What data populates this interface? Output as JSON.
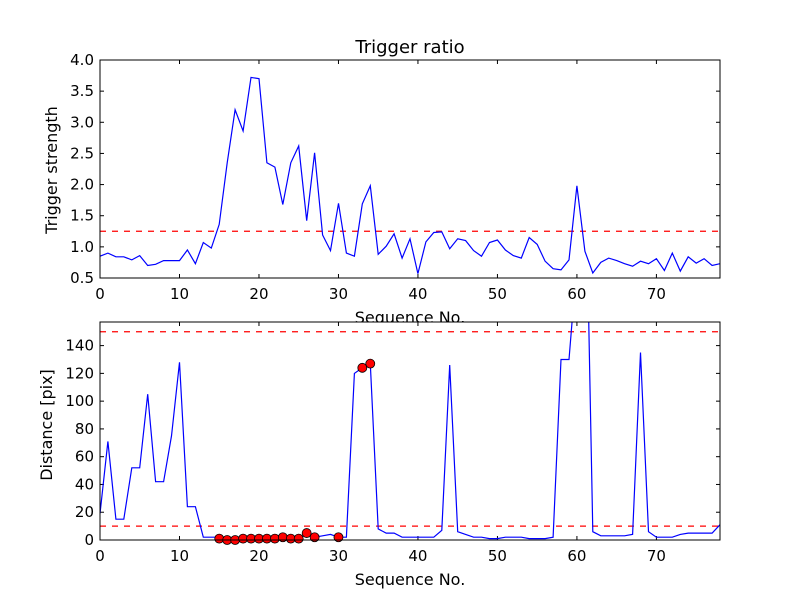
{
  "chart_data": [
    {
      "type": "line",
      "title": "Trigger ratio",
      "xlabel": "Sequence No.",
      "ylabel": "Trigger strength",
      "xlim": [
        0,
        78
      ],
      "ylim": [
        0.5,
        4.0
      ],
      "x_ticks": [
        "0",
        "10",
        "20",
        "30",
        "40",
        "50",
        "60",
        "70"
      ],
      "y_ticks": [
        "0.5",
        "1.0",
        "1.5",
        "2.0",
        "2.5",
        "3.0",
        "3.5",
        "4.0"
      ],
      "grid": false,
      "threshold": 1.25,
      "threshold_color": "#ff0000",
      "line_color": "#0000ff",
      "values": [
        0.85,
        0.9,
        0.84,
        0.84,
        0.79,
        0.86,
        0.7,
        0.72,
        0.78,
        0.78,
        0.78,
        0.95,
        0.73,
        1.07,
        0.98,
        1.36,
        2.35,
        3.2,
        2.86,
        3.72,
        3.7,
        2.35,
        2.28,
        1.68,
        2.35,
        2.62,
        1.42,
        2.51,
        1.19,
        0.94,
        1.7,
        0.9,
        0.85,
        1.69,
        1.98,
        0.88,
        1.01,
        1.21,
        0.82,
        1.13,
        0.57,
        1.08,
        1.23,
        1.24,
        0.97,
        1.13,
        1.1,
        0.94,
        0.85,
        1.07,
        1.11,
        0.95,
        0.86,
        0.82,
        1.15,
        1.04,
        0.77,
        0.65,
        0.63,
        0.79,
        1.98,
        0.93,
        0.58,
        0.75,
        0.82,
        0.78,
        0.73,
        0.69,
        0.77,
        0.73,
        0.81,
        0.62,
        0.9,
        0.61,
        0.84,
        0.74,
        0.81,
        0.7,
        0.73
      ]
    },
    {
      "type": "line",
      "title": "",
      "xlabel": "Sequence No.",
      "ylabel": "Distance [pix]",
      "xlim": [
        0,
        78
      ],
      "ylim": [
        0,
        157
      ],
      "x_ticks": [
        "0",
        "10",
        "20",
        "30",
        "40",
        "50",
        "60",
        "70"
      ],
      "y_ticks": [
        "0",
        "20",
        "40",
        "60",
        "80",
        "100",
        "120",
        "140"
      ],
      "grid": false,
      "thresholds": [
        10,
        150
      ],
      "threshold_color": "#ff0000",
      "line_color": "#0000ff",
      "marker_color": "#ff0000",
      "values": [
        19,
        71,
        15,
        15,
        52,
        52,
        105,
        42,
        42,
        75,
        128,
        24,
        24,
        2,
        2,
        2,
        1,
        1,
        1,
        1,
        1,
        1,
        1,
        1,
        1,
        1,
        4,
        2,
        3,
        4,
        2,
        2,
        120,
        124,
        127,
        8,
        5,
        5,
        2,
        2,
        2,
        2,
        2,
        7,
        126,
        6,
        4,
        2,
        2,
        1,
        1,
        2,
        2,
        2,
        1,
        1,
        1,
        2,
        130,
        130,
        200,
        300,
        6,
        3,
        3,
        3,
        3,
        4,
        135,
        6,
        2,
        2,
        2,
        4,
        5,
        5,
        5,
        5,
        11
      ],
      "markers": {
        "x": [
          15,
          16,
          17,
          18,
          19,
          20,
          21,
          22,
          23,
          24,
          25,
          26,
          27,
          30,
          33,
          34
        ],
        "y": [
          1,
          0,
          0,
          1,
          1,
          1,
          1,
          1,
          2,
          1,
          1,
          5,
          2,
          2,
          124,
          127
        ]
      }
    }
  ]
}
